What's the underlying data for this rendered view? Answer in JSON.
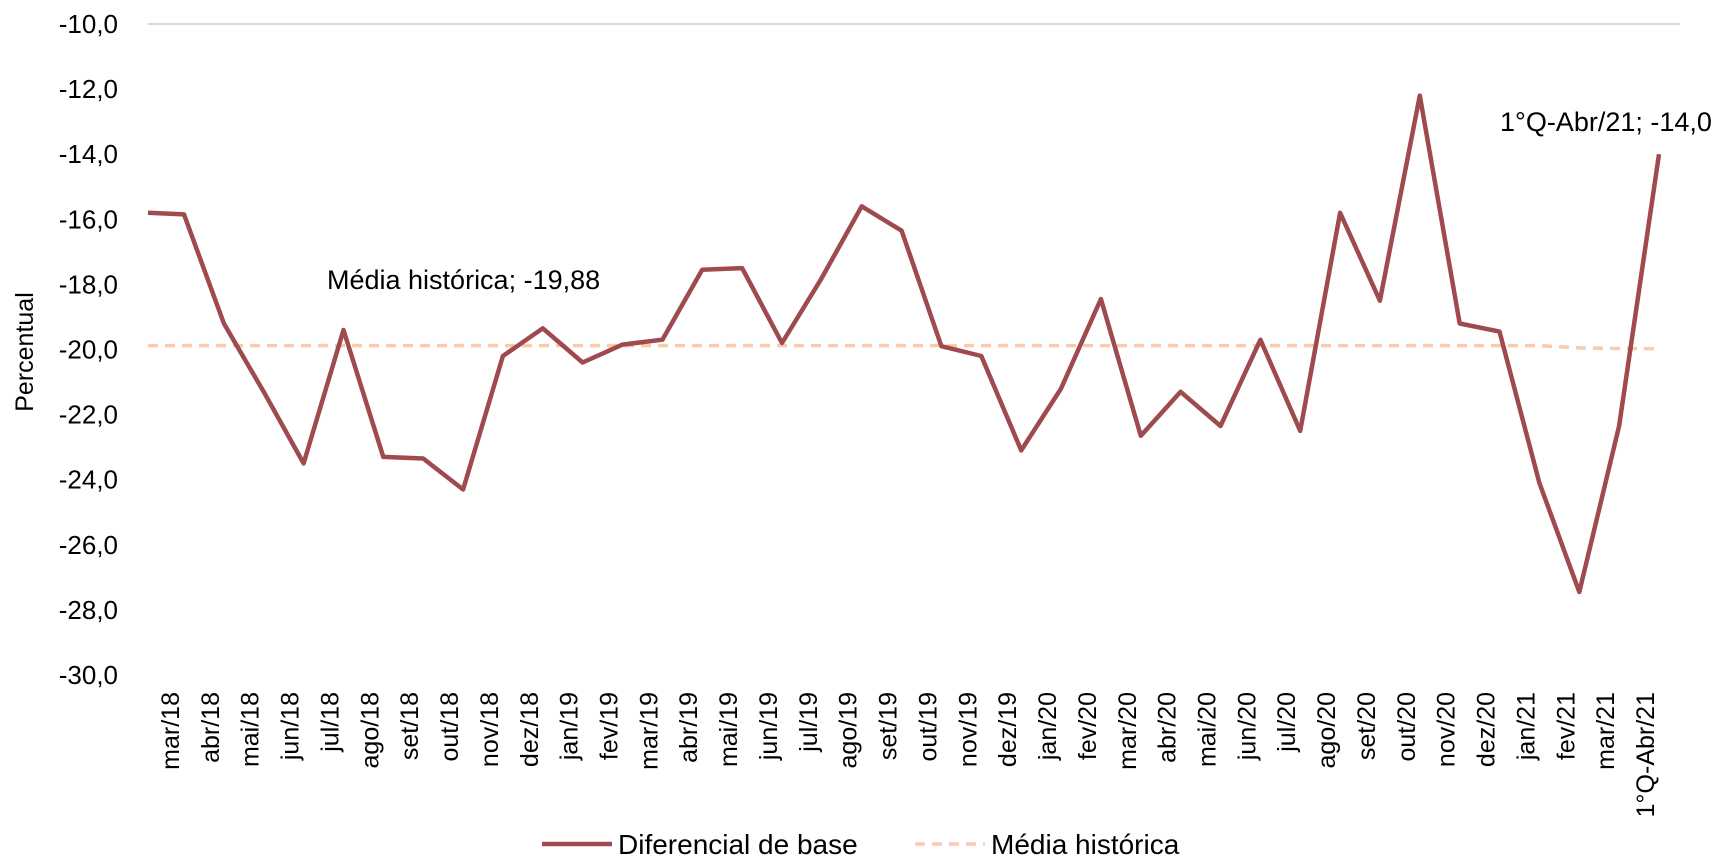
{
  "chart_data": {
    "type": "line",
    "title": "",
    "xlabel": "",
    "ylabel": "Percentual",
    "ylim": [
      -30,
      -10
    ],
    "ytick_step": 2,
    "ytick_labels": [
      "-10,0",
      "-12,0",
      "-14,0",
      "-16,0",
      "-18,0",
      "-20,0",
      "-22,0",
      "-24,0",
      "-26,0",
      "-28,0",
      "-30,0"
    ],
    "grid": "horizontal top line only",
    "legend_position": "bottom",
    "categories": [
      "mar/18",
      "abr/18",
      "mai/18",
      "jun/18",
      "jul/18",
      "ago/18",
      "set/18",
      "out/18",
      "nov/18",
      "dez/18",
      "jan/19",
      "fev/19",
      "mar/19",
      "abr/19",
      "mai/19",
      "jun/19",
      "jul/19",
      "ago/19",
      "set/19",
      "out/19",
      "nov/19",
      "dez/19",
      "jan/20",
      "fev/20",
      "mar/20",
      "abr/20",
      "mai/20",
      "jun/20",
      "jul/20",
      "ago/20",
      "set/20",
      "out/20",
      "nov/20",
      "dez/20",
      "jan/21",
      "fev/21",
      "mar/21",
      "1°Q-Abr/21"
    ],
    "series": [
      {
        "name": "Diferencial de base",
        "color": "#9E4A4F",
        "style": "solid",
        "lead_in_value": -15.8,
        "values": [
          -15.85,
          -19.2,
          -21.3,
          -23.5,
          -19.4,
          -23.3,
          -23.35,
          -24.3,
          -20.2,
          -19.35,
          -20.4,
          -19.85,
          -19.7,
          -17.55,
          -17.5,
          -19.8,
          -17.8,
          -15.6,
          -16.35,
          -19.9,
          -20.2,
          -23.1,
          -21.2,
          -18.45,
          -22.65,
          -21.3,
          -22.35,
          -19.7,
          -22.5,
          -15.8,
          -18.5,
          -12.2,
          -19.2,
          -19.45,
          -24.1,
          -27.45,
          -22.35,
          -14.0
        ]
      },
      {
        "name": "Média histórica",
        "color": "#F8CBAD",
        "style": "dashed",
        "values": [
          -19.88,
          -19.88,
          -19.88,
          -19.88,
          -19.88,
          -19.88,
          -19.88,
          -19.88,
          -19.88,
          -19.88,
          -19.88,
          -19.88,
          -19.88,
          -19.88,
          -19.88,
          -19.88,
          -19.88,
          -19.88,
          -19.88,
          -19.88,
          -19.88,
          -19.88,
          -19.88,
          -19.88,
          -19.88,
          -19.88,
          -19.88,
          -19.88,
          -19.88,
          -19.88,
          -19.88,
          -19.88,
          -19.88,
          -19.88,
          -19.88,
          -19.95,
          -19.97,
          -19.98
        ]
      }
    ],
    "annotations": [
      {
        "text": "Média histórica; -19,88",
        "series": "Média histórica"
      },
      {
        "text": "1°Q-Abr/21; -14,0",
        "series": "Diferencial de base"
      }
    ]
  }
}
